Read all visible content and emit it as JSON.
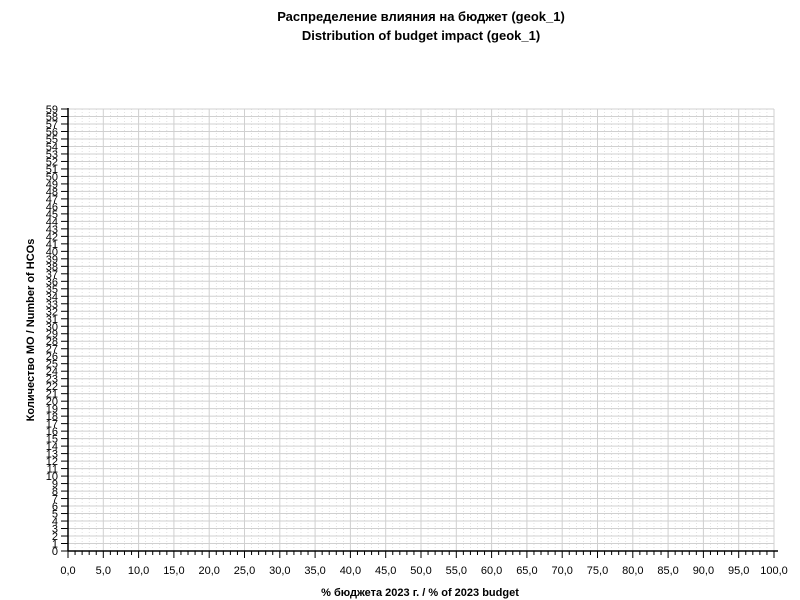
{
  "chart_data": {
    "type": "bar",
    "title": "Распределение влияния на бюджет (geok_1)",
    "subtitle": "Distribution of budget impact (geok_1)",
    "xlabel": "% бюджета 2023 г. / % of 2023 budget",
    "ylabel": "Количество МО / Number of HCOs",
    "xlim": [
      0,
      100
    ],
    "ylim": [
      0,
      59
    ],
    "x_ticks": [
      "0,0",
      "5,0",
      "10,0",
      "15,0",
      "20,0",
      "25,0",
      "30,0",
      "35,0",
      "40,0",
      "45,0",
      "50,0",
      "55,0",
      "60,0",
      "65,0",
      "70,0",
      "75,0",
      "80,0",
      "85,0",
      "90,0",
      "95,0",
      "100,0"
    ],
    "y_ticks": [
      "0",
      "1",
      "2",
      "3",
      "4",
      "5",
      "6",
      "7",
      "8",
      "9",
      "10",
      "11",
      "12",
      "13",
      "14",
      "15",
      "16",
      "17",
      "18",
      "19",
      "20",
      "21",
      "22",
      "23",
      "24",
      "25",
      "26",
      "27",
      "28",
      "29",
      "30",
      "31",
      "32",
      "33",
      "34",
      "35",
      "36",
      "37",
      "38",
      "39",
      "40",
      "41",
      "42",
      "43",
      "44",
      "45",
      "46",
      "47",
      "48",
      "49",
      "50",
      "51",
      "52",
      "53",
      "54",
      "55",
      "56",
      "57",
      "58",
      "59"
    ],
    "grid": true,
    "series": [],
    "colors": {
      "grid": "#d0d0d0",
      "axis": "#000000"
    }
  }
}
